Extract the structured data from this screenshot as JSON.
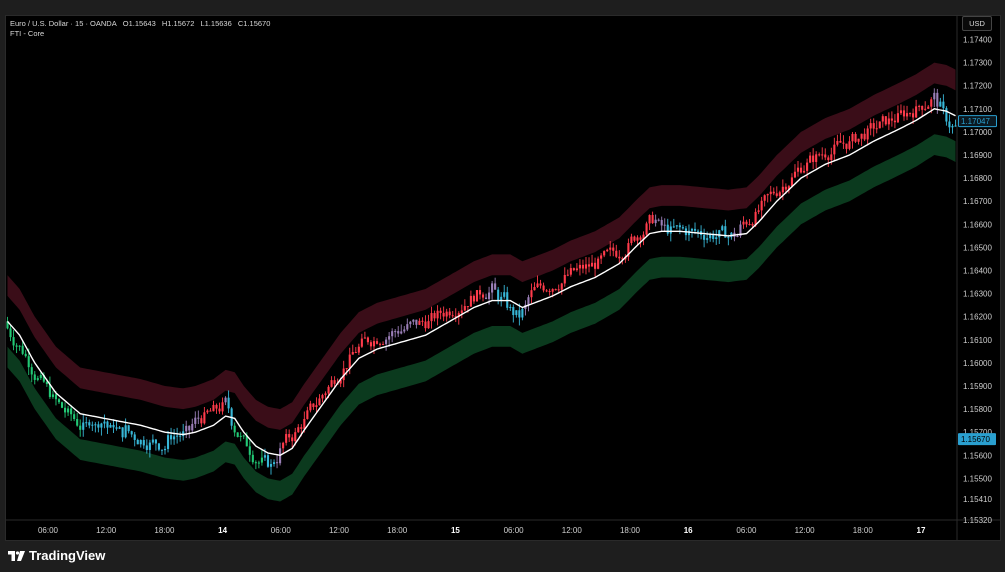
{
  "header": {
    "symbol": "Euro / U.S. Dollar · 15 · OANDA",
    "open": "O1.15643",
    "high": "H1.15672",
    "low": "L1.15636",
    "close": "C1.15670",
    "indicator": "FTI - Core"
  },
  "currency_label": "USD",
  "brand": "TradingView",
  "colors": {
    "background": "#000000",
    "upper_band": "#3a0d18",
    "lower_band": "#0b3a1e",
    "midline": "#ffffff",
    "bull_candle": "#ff3b4b",
    "neutral_candle": "#9b7fb8",
    "bear_candle": "#38b8d8",
    "strong_bear_candle": "#22c875",
    "price_tag": "#2a9fcf"
  },
  "chart_data": {
    "type": "candlestick",
    "ylim": [
      1.1532,
      1.1745
    ],
    "y_ticks": [
      "1.17400",
      "1.17300",
      "1.17200",
      "1.17100",
      "1.17000",
      "1.16900",
      "1.16800",
      "1.16700",
      "1.16600",
      "1.16500",
      "1.16400",
      "1.16300",
      "1.16200",
      "1.16100",
      "1.16000",
      "1.15900",
      "1.15800",
      "1.15700",
      "1.15600",
      "1.15500",
      "1.15410",
      "1.15320"
    ],
    "x_ticks": [
      "06:00",
      "12:00",
      "18:00",
      "14",
      "06:00",
      "12:00",
      "18:00",
      "15",
      "06:00",
      "12:00",
      "18:00",
      "16",
      "06:00",
      "12:00",
      "18:00",
      "17"
    ],
    "price_labels": [
      {
        "value": 1.17047,
        "text": "1.17047",
        "style": "outline"
      },
      {
        "value": 1.1567,
        "text": "1.15670",
        "style": "filled"
      }
    ],
    "midline": {
      "name": "",
      "points": [
        [
          0,
          1.1618
        ],
        [
          4,
          1.1612
        ],
        [
          9,
          1.16
        ],
        [
          16,
          1.1587
        ],
        [
          24,
          1.1578
        ],
        [
          34,
          1.15755
        ],
        [
          44,
          1.1573
        ],
        [
          52,
          1.157
        ],
        [
          58,
          1.1569
        ],
        [
          62,
          1.157
        ],
        [
          68,
          1.1573
        ],
        [
          72,
          1.1577
        ],
        [
          75,
          1.1576
        ],
        [
          78,
          1.157
        ],
        [
          82,
          1.1564
        ],
        [
          86,
          1.1561
        ],
        [
          90,
          1.156
        ],
        [
          94,
          1.1563
        ],
        [
          98,
          1.1571
        ],
        [
          104,
          1.1582
        ],
        [
          110,
          1.1593
        ],
        [
          116,
          1.1602
        ],
        [
          122,
          1.1606
        ],
        [
          130,
          1.1609
        ],
        [
          138,
          1.1612
        ],
        [
          146,
          1.1618
        ],
        [
          154,
          1.1624
        ],
        [
          160,
          1.1627
        ],
        [
          166,
          1.1627
        ],
        [
          170,
          1.1624
        ],
        [
          174,
          1.1626
        ],
        [
          180,
          1.1629
        ],
        [
          186,
          1.1633
        ],
        [
          194,
          1.1637
        ],
        [
          202,
          1.1643
        ],
        [
          208,
          1.1651
        ],
        [
          212,
          1.1656
        ],
        [
          216,
          1.1657
        ],
        [
          222,
          1.1657
        ],
        [
          230,
          1.1656
        ],
        [
          238,
          1.1655
        ],
        [
          244,
          1.1656
        ],
        [
          248,
          1.1661
        ],
        [
          254,
          1.167
        ],
        [
          262,
          1.168
        ],
        [
          270,
          1.1686
        ],
        [
          278,
          1.169
        ],
        [
          286,
          1.1696
        ],
        [
          294,
          1.1701
        ],
        [
          300,
          1.1705
        ],
        [
          306,
          1.171
        ],
        [
          310,
          1.1709
        ],
        [
          313,
          1.1707
        ]
      ]
    },
    "band_offsets": {
      "inner": 0.0011,
      "outer": 0.002
    }
  }
}
